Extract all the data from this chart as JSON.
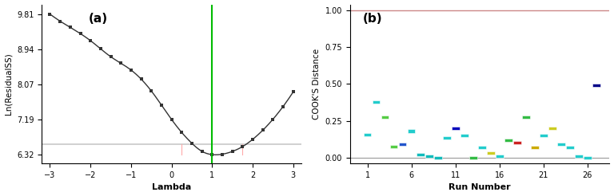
{
  "plot_a": {
    "title": "(a)",
    "xlabel": "Lambda",
    "ylabel": "Ln(ResidualSS)",
    "lambda_min": -3,
    "lambda_max": 3,
    "vertical_line_x": 1.0,
    "vertical_line_color": "#00bb00",
    "confidence_line_y": 6.57,
    "confidence_line_color": "#c8c8c8",
    "pink_line_x1": 0.25,
    "pink_line_x2": 1.75,
    "curve_color": "#333333",
    "yticks": [
      6.32,
      7.19,
      8.07,
      8.94,
      9.81
    ],
    "xticks": [
      -3,
      -2,
      -1,
      0,
      1,
      2,
      3
    ],
    "x_pts": [
      -3.0,
      -2.5,
      -2.0,
      -1.5,
      -1.0,
      -0.5,
      0.0,
      0.5,
      0.75,
      1.0,
      1.25,
      1.5,
      1.75,
      2.0,
      2.5,
      3.0
    ],
    "y_pts": [
      9.81,
      9.48,
      9.15,
      8.75,
      8.42,
      7.9,
      7.19,
      6.6,
      6.4,
      6.32,
      6.33,
      6.4,
      6.52,
      6.7,
      7.2,
      7.88
    ],
    "ymin": 6.1,
    "ymax": 10.05
  },
  "plot_b": {
    "title": "(b)",
    "xlabel": "Run Number",
    "ylabel": "COOK'S Distance",
    "ylim": [
      -0.04,
      1.04
    ],
    "yticks": [
      0.0,
      0.25,
      0.5,
      0.75,
      1.0
    ],
    "xticks": [
      1,
      6,
      11,
      16,
      21,
      26
    ],
    "hline_y": 1.0,
    "hline_color": "#cc8888",
    "hline0_y": 0.0,
    "hline0_color": "#999999",
    "runs": [
      1,
      2,
      3,
      4,
      5,
      6,
      7,
      8,
      9,
      10,
      11,
      12,
      13,
      14,
      15,
      16,
      17,
      18,
      19,
      20,
      21,
      22,
      23,
      24,
      25,
      26,
      27
    ],
    "cooks_distances": [
      0.155,
      0.375,
      0.275,
      0.075,
      0.09,
      0.18,
      0.02,
      0.01,
      0.0,
      0.135,
      0.2,
      0.15,
      0.0,
      0.07,
      0.03,
      0.01,
      0.12,
      0.1,
      0.275,
      0.07,
      0.15,
      0.2,
      0.09,
      0.07,
      0.01,
      0.0,
      0.49
    ],
    "colors": [
      "#22cccc",
      "#22cccc",
      "#55cc44",
      "#55cc44",
      "#2255cc",
      "#22cccc",
      "#11bbbb",
      "#11bbbb",
      "#11bbbb",
      "#22cccc",
      "#0000bb",
      "#22cccc",
      "#33bb44",
      "#22cccc",
      "#cccc22",
      "#22cccc",
      "#33bb44",
      "#cc2222",
      "#33bb44",
      "#ccaa00",
      "#22cccc",
      "#cccc22",
      "#22cccc",
      "#22cccc",
      "#22cccc",
      "#22cccc",
      "#000088"
    ]
  }
}
